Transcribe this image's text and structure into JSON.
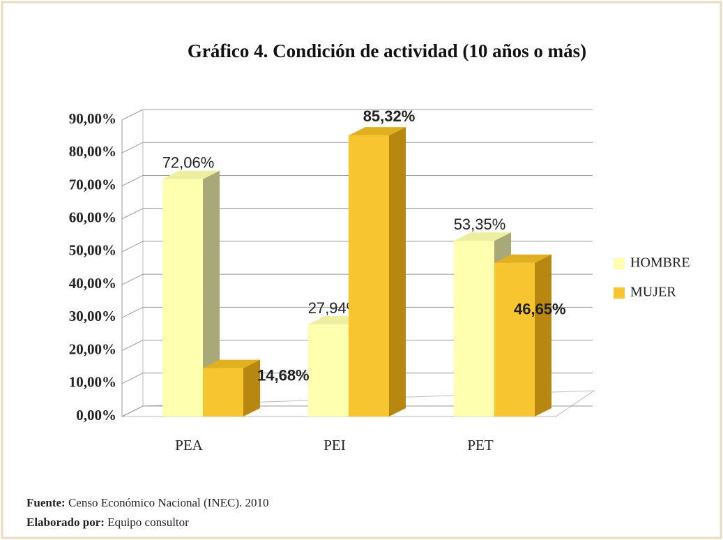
{
  "chart_data": {
    "type": "bar3d",
    "title": "Gráfico 4. Condición de actividad (10 años o más)",
    "categories": [
      "PEA",
      "PEI",
      "PET"
    ],
    "series": [
      {
        "name": "HOMBRE",
        "color": "#ffffb0",
        "values": [
          72.06,
          27.94,
          53.35
        ],
        "value_labels": [
          "72,06%",
          "27,94%",
          "53,35%"
        ]
      },
      {
        "name": "MUJER",
        "color": "#f7c530",
        "values": [
          14.68,
          85.32,
          46.65
        ],
        "value_labels": [
          "14,68%",
          "85,32%",
          "46,65%"
        ]
      }
    ],
    "ylim": [
      0,
      90
    ],
    "yticks": [
      {
        "value": 0,
        "label": "0,00%"
      },
      {
        "value": 10,
        "label": "10,00%"
      },
      {
        "value": 20,
        "label": "20,00%"
      },
      {
        "value": 30,
        "label": "30,00%"
      },
      {
        "value": 40,
        "label": "40,00%"
      },
      {
        "value": 50,
        "label": "50,00%"
      },
      {
        "value": 60,
        "label": "60,00%"
      },
      {
        "value": 70,
        "label": "70,00%"
      },
      {
        "value": 80,
        "label": "80,00%"
      },
      {
        "value": 90,
        "label": "90,00%"
      }
    ],
    "grid": true,
    "legend": "right",
    "source_label": "Fuente:",
    "source": "Censo Económico Nacional (INEC). 2010",
    "author_label": "Elaborado por:",
    "author": "Equipo consultor"
  }
}
